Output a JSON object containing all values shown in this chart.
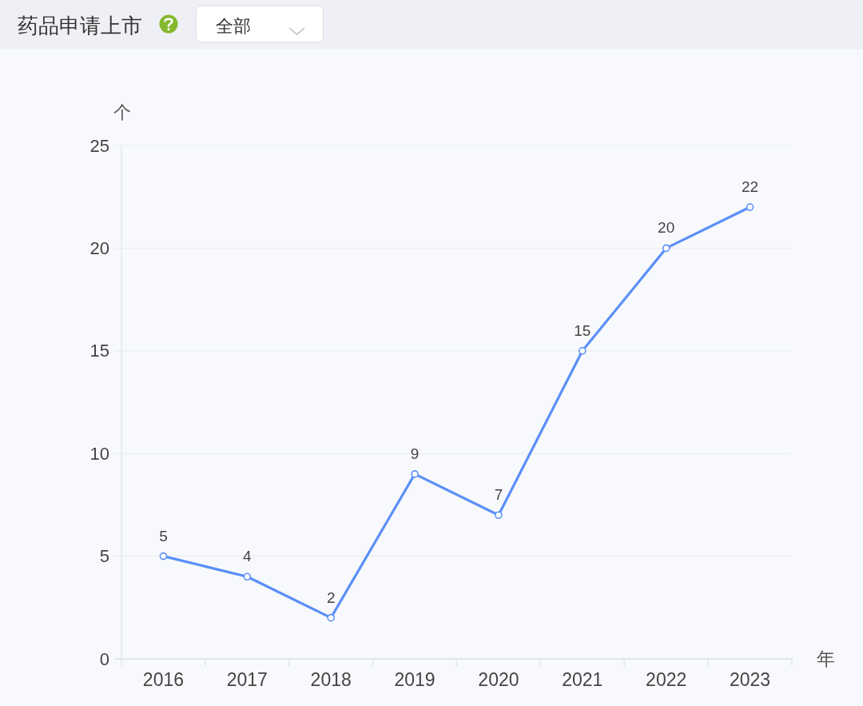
{
  "chart_data": {
    "type": "line",
    "title": "药品申请上市",
    "annotations": [
      "全部"
    ],
    "xlabel": "年",
    "ylabel": "个",
    "categories": [
      "2016",
      "2017",
      "2018",
      "2019",
      "2020",
      "2021",
      "2022",
      "2023"
    ],
    "series": [
      {
        "color": "#5b8ff9",
        "values": [
          5,
          4,
          2,
          9,
          7,
          15,
          20,
          22
        ]
      }
    ],
    "ylim": [
      0,
      25
    ],
    "yticks": [
      0,
      5,
      10,
      15,
      20,
      25
    ],
    "grid": "y",
    "marker": "circle",
    "line_style": "solid",
    "data_labels": true
  }
}
